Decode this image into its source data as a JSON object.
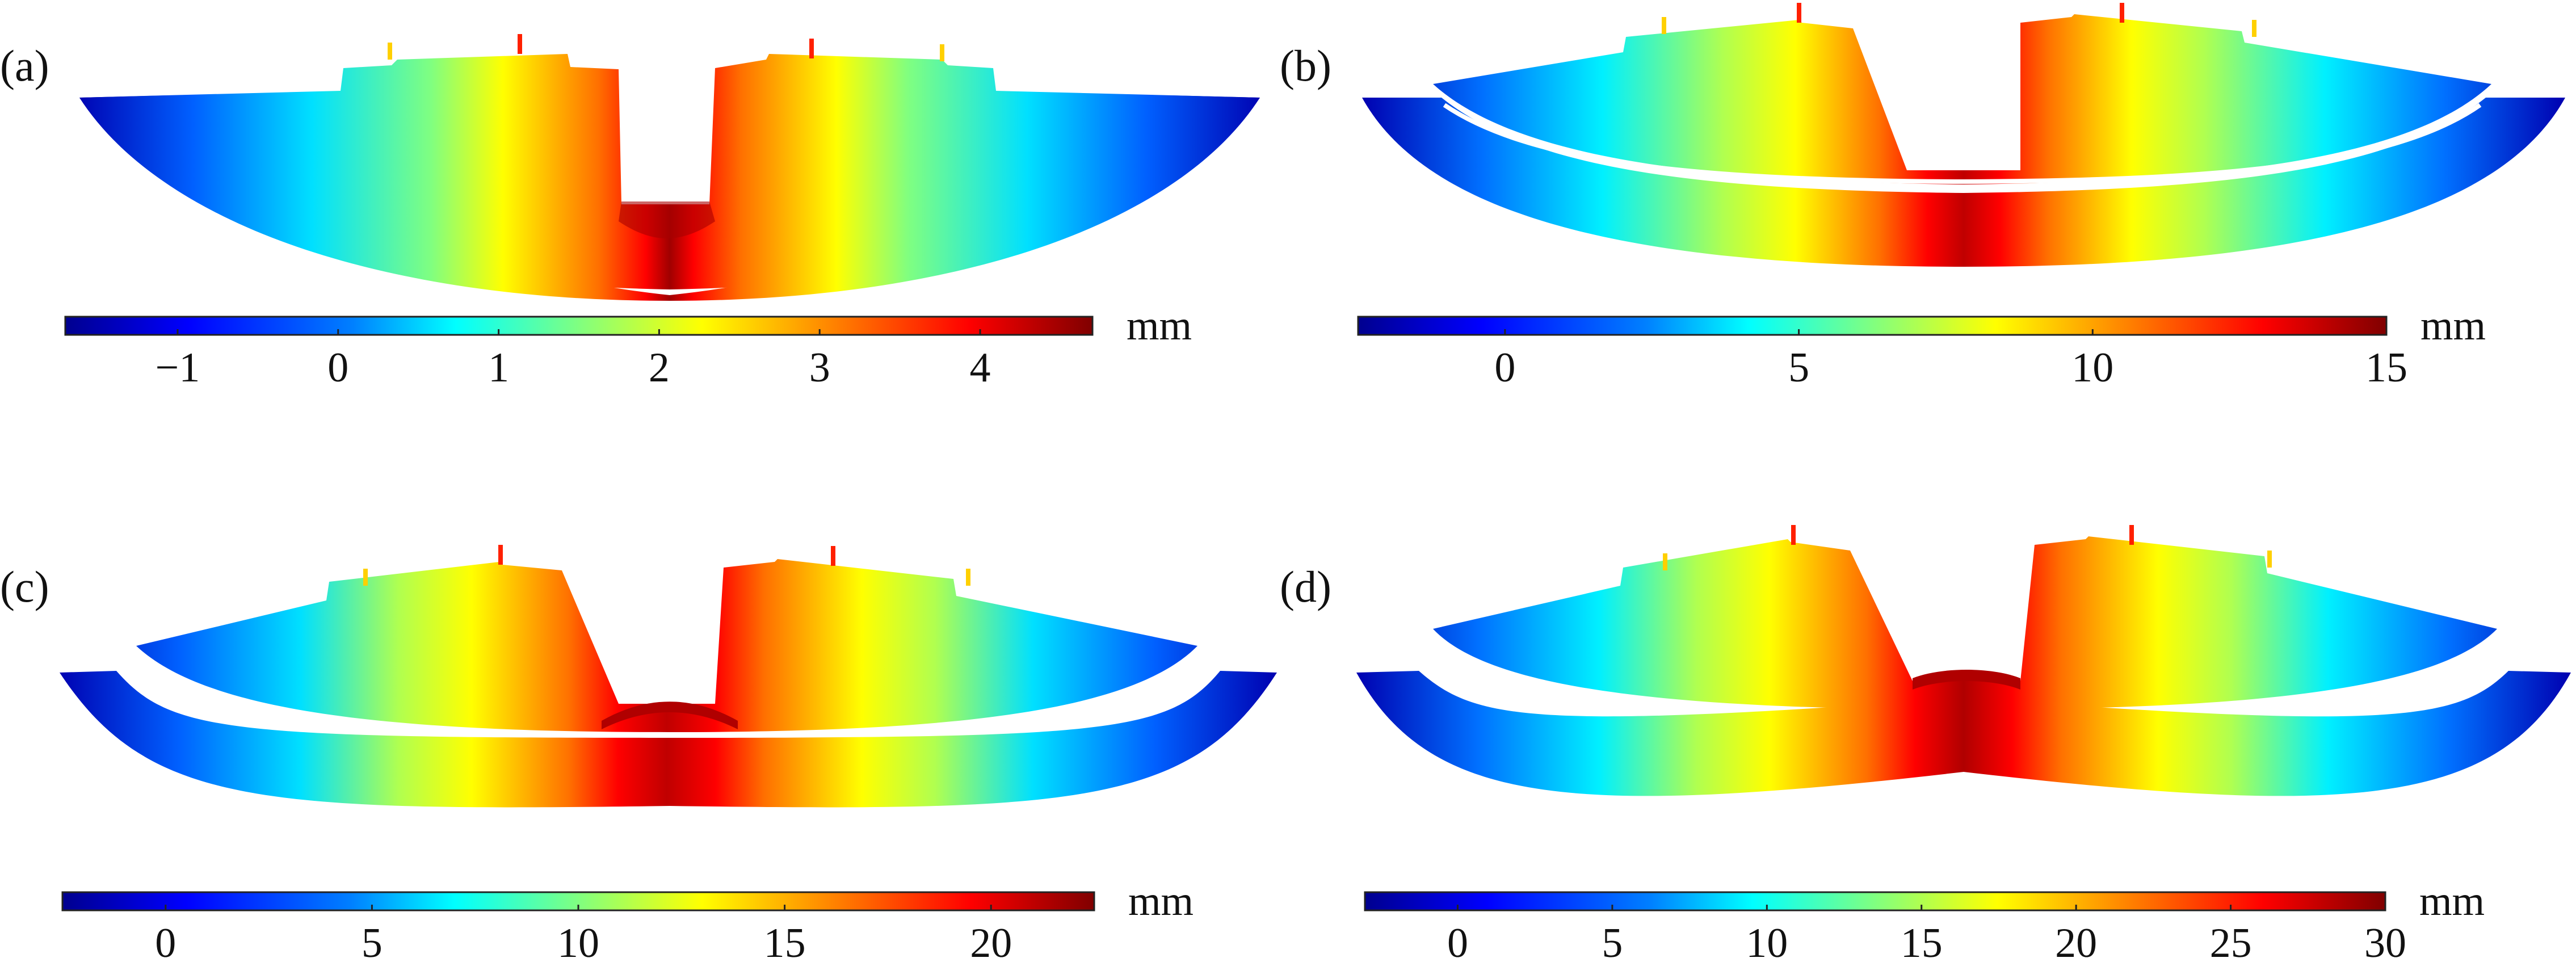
{
  "figure": {
    "colormap": [
      "#00008f",
      "#0000ff",
      "#0080ff",
      "#00ffff",
      "#80ff80",
      "#ffff00",
      "#ff8000",
      "#ff0000",
      "#800000"
    ],
    "background": "#ffffff"
  },
  "panels": [
    {
      "id": "a",
      "label": "(a)",
      "unit": "mm",
      "range": [
        -1.7,
        4.7
      ],
      "ticks": [
        -1,
        0,
        1,
        2,
        3,
        4
      ],
      "tick_labels": [
        "−1",
        "0",
        "1",
        "2",
        "3",
        "4"
      ],
      "state": "uplift-uniform"
    },
    {
      "id": "b",
      "label": "(b)",
      "unit": "mm",
      "range": [
        -2.5,
        15
      ],
      "ticks": [
        0,
        5,
        10,
        15
      ],
      "tick_labels": [
        "0",
        "5",
        "10",
        "15"
      ],
      "state": "separation-small"
    },
    {
      "id": "c",
      "label": "(c)",
      "unit": "mm",
      "range": [
        -2.5,
        22.5
      ],
      "ticks": [
        0,
        5,
        10,
        15,
        20
      ],
      "tick_labels": [
        "0",
        "5",
        "10",
        "15",
        "20"
      ],
      "state": "separation-medium"
    },
    {
      "id": "d",
      "label": "(d)",
      "unit": "mm",
      "range": [
        -3,
        30
      ],
      "ticks": [
        0,
        5,
        10,
        15,
        20,
        25,
        30
      ],
      "tick_labels": [
        "0",
        "5",
        "10",
        "15",
        "20",
        "25",
        "30"
      ],
      "state": "separation-large"
    }
  ]
}
